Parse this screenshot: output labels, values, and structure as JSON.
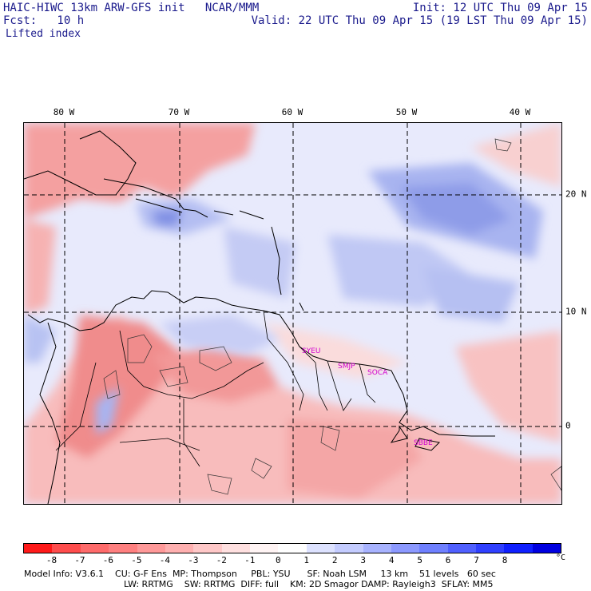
{
  "header": {
    "model_line": "HAIC-HIWC 13km ARW-GFS init   NCAR/MMM",
    "forecast_line": "Fcst:   10 h",
    "field_name": "Lifted index",
    "init_time": "Init: 12 UTC Thu 09 Apr 15",
    "valid_time": "Valid: 22 UTC Thu 09 Apr 15 (19 LST Thu 09 Apr 15)"
  },
  "map": {
    "longitude_labels": [
      "80 W",
      "70 W",
      "60 W",
      "50 W",
      "40 W"
    ],
    "latitude_labels": [
      "20 N",
      "10 N",
      "0"
    ],
    "stations": [
      "SYEU",
      "SMJP",
      "SOCA",
      "SBBE"
    ],
    "field_colors": {
      "warm": "#f4a0a0",
      "cool": "#a8b4f0"
    }
  },
  "colorbar": {
    "tick_labels": [
      "-8",
      "-7",
      "-6",
      "-5",
      "-4",
      "-3",
      "-2",
      "-1",
      "0",
      "1",
      "2",
      "3",
      "4",
      "5",
      "6",
      "7",
      "8"
    ],
    "unit": "°C",
    "colors": [
      "#ff1a1a",
      "#ff4d4d",
      "#ff6b6b",
      "#ff8080",
      "#ff9999",
      "#ffb0b0",
      "#ffc8c8",
      "#ffe0e0",
      "#fff4f4",
      "#ffffff",
      "#dde2ff",
      "#c4ccff",
      "#a8b3ff",
      "#8c99ff",
      "#6f80ff",
      "#5060ff",
      "#3040ff",
      "#1020ff",
      "#0000e0"
    ]
  },
  "footer": {
    "line1": "Model Info: V3.6.1    CU: G-F Ens  MP: Thompson     PBL: YSU      SF: Noah LSM     13 km    51 levels   60 sec",
    "line2": "LW: RRTMG    SW: RRTMG  DIFF: full    KM: 2D Smagor DAMP: Rayleigh3  SFLAY: MM5"
  }
}
